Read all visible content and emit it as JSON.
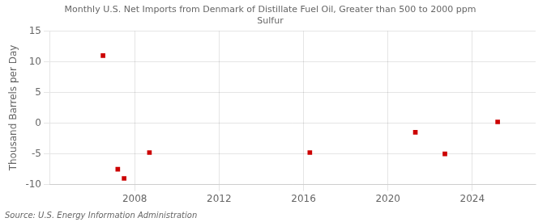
{
  "chart_data": {
    "type": "scatter",
    "title": "Monthly U.S. Net Imports from Denmark of Distillate Fuel Oil, Greater than 500 to 2000 ppm\nSulfur",
    "ylabel": "Thousand Barrels per Day",
    "source": "Source: U.S. Energy Information Administration",
    "x": [
      2006.5,
      2007.2,
      2007.5,
      2008.7,
      2016.3,
      2021.3,
      2022.7,
      2025.2
    ],
    "values": [
      11.0,
      -7.5,
      -9.0,
      -4.8,
      -4.8,
      -1.5,
      -5.0,
      0.2
    ],
    "color": "#cc0000",
    "marker": "square",
    "xlim": [
      2004,
      2027
    ],
    "xticks": [
      2008,
      2012,
      2016,
      2020,
      2024
    ],
    "ylim": [
      -10,
      15
    ],
    "yticks": [
      -10,
      -5,
      0,
      5,
      10,
      15
    ],
    "grid": true
  }
}
